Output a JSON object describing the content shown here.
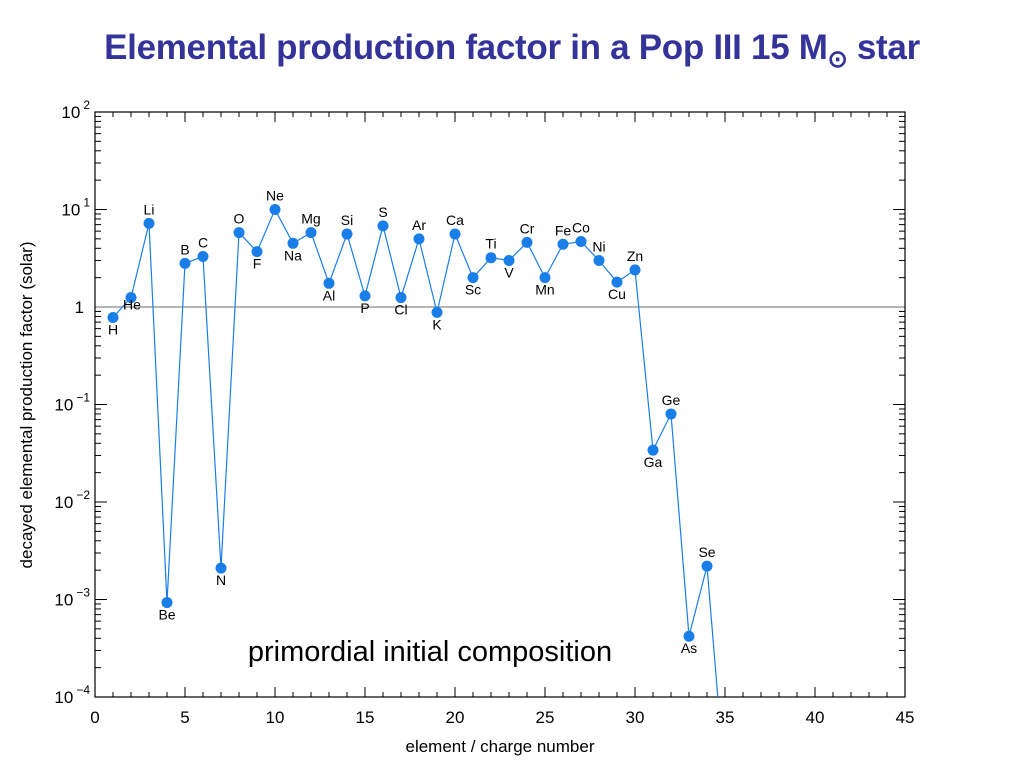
{
  "title": {
    "main": "Elemental production factor in a Pop III 15 M",
    "subscript": "⊙",
    "suffix": " star"
  },
  "chart_data": {
    "type": "line",
    "xlabel": "element  / charge number",
    "ylabel": "decayed elemental production factor (solar)",
    "xlim": [
      0,
      45
    ],
    "ylim": [
      0.0001,
      100
    ],
    "y_scale": "log",
    "grid": false,
    "x_ticks": [
      "0",
      "5",
      "10",
      "15",
      "20",
      "25",
      "30",
      "35",
      "40",
      "45"
    ],
    "y_ticks": [
      {
        "base": "10",
        "exp": "−4"
      },
      {
        "base": "10",
        "exp": "−3"
      },
      {
        "base": "10",
        "exp": "−2"
      },
      {
        "base": "10",
        "exp": "−1"
      },
      {
        "base": "1",
        "exp": ""
      },
      {
        "base": "10",
        "exp": "1"
      },
      {
        "base": "10",
        "exp": "2"
      }
    ],
    "reference_line": 1,
    "annotation": "primordial initial composition",
    "series": [
      {
        "color": "#1a7ee8",
        "points": [
          {
            "z": 1,
            "label": "H",
            "y": 0.78,
            "lpos": "below"
          },
          {
            "z": 2,
            "label": "He",
            "y": 1.25,
            "lpos": "right"
          },
          {
            "z": 3,
            "label": "Li",
            "y": 7.2,
            "lpos": "above"
          },
          {
            "z": 4,
            "label": "Be",
            "y": 0.00093,
            "lpos": "below"
          },
          {
            "z": 5,
            "label": "B",
            "y": 2.8,
            "lpos": "above"
          },
          {
            "z": 6,
            "label": "C",
            "y": 3.3,
            "lpos": "above"
          },
          {
            "z": 7,
            "label": "N",
            "y": 0.0021,
            "lpos": "below"
          },
          {
            "z": 8,
            "label": "O",
            "y": 5.8,
            "lpos": "above"
          },
          {
            "z": 9,
            "label": "F",
            "y": 3.7,
            "lpos": "below"
          },
          {
            "z": 10,
            "label": "Ne",
            "y": 10,
            "lpos": "above"
          },
          {
            "z": 11,
            "label": "Na",
            "y": 4.5,
            "lpos": "below"
          },
          {
            "z": 12,
            "label": "Mg",
            "y": 5.8,
            "lpos": "above"
          },
          {
            "z": 13,
            "label": "Al",
            "y": 1.75,
            "lpos": "below"
          },
          {
            "z": 14,
            "label": "Si",
            "y": 5.6,
            "lpos": "above"
          },
          {
            "z": 15,
            "label": "P",
            "y": 1.3,
            "lpos": "below"
          },
          {
            "z": 16,
            "label": "S",
            "y": 6.8,
            "lpos": "above"
          },
          {
            "z": 17,
            "label": "Cl",
            "y": 1.25,
            "lpos": "below"
          },
          {
            "z": 18,
            "label": "Ar",
            "y": 5.0,
            "lpos": "above"
          },
          {
            "z": 19,
            "label": "K",
            "y": 0.88,
            "lpos": "below"
          },
          {
            "z": 20,
            "label": "Ca",
            "y": 5.6,
            "lpos": "above"
          },
          {
            "z": 21,
            "label": "Sc",
            "y": 2.0,
            "lpos": "below"
          },
          {
            "z": 22,
            "label": "Ti",
            "y": 3.2,
            "lpos": "above"
          },
          {
            "z": 23,
            "label": "V",
            "y": 3.0,
            "lpos": "below"
          },
          {
            "z": 24,
            "label": "Cr",
            "y": 4.6,
            "lpos": "above"
          },
          {
            "z": 25,
            "label": "Mn",
            "y": 2.0,
            "lpos": "below"
          },
          {
            "z": 26,
            "label": "Fe",
            "y": 4.4,
            "lpos": "above"
          },
          {
            "z": 27,
            "label": "Co",
            "y": 4.7,
            "lpos": "above"
          },
          {
            "z": 28,
            "label": "Ni",
            "y": 3.0,
            "lpos": "above"
          },
          {
            "z": 29,
            "label": "Cu",
            "y": 1.8,
            "lpos": "below"
          },
          {
            "z": 30,
            "label": "Zn",
            "y": 2.4,
            "lpos": "above"
          },
          {
            "z": 31,
            "label": "Ga",
            "y": 0.034,
            "lpos": "below"
          },
          {
            "z": 32,
            "label": "Ge",
            "y": 0.08,
            "lpos": "above"
          },
          {
            "z": 33,
            "label": "As",
            "y": 0.00042,
            "lpos": "below"
          },
          {
            "z": 34,
            "label": "Se",
            "y": 0.0022,
            "lpos": "above"
          },
          {
            "z": 34.6,
            "label": "",
            "y": 0.0001,
            "lpos": "none"
          }
        ]
      }
    ]
  }
}
